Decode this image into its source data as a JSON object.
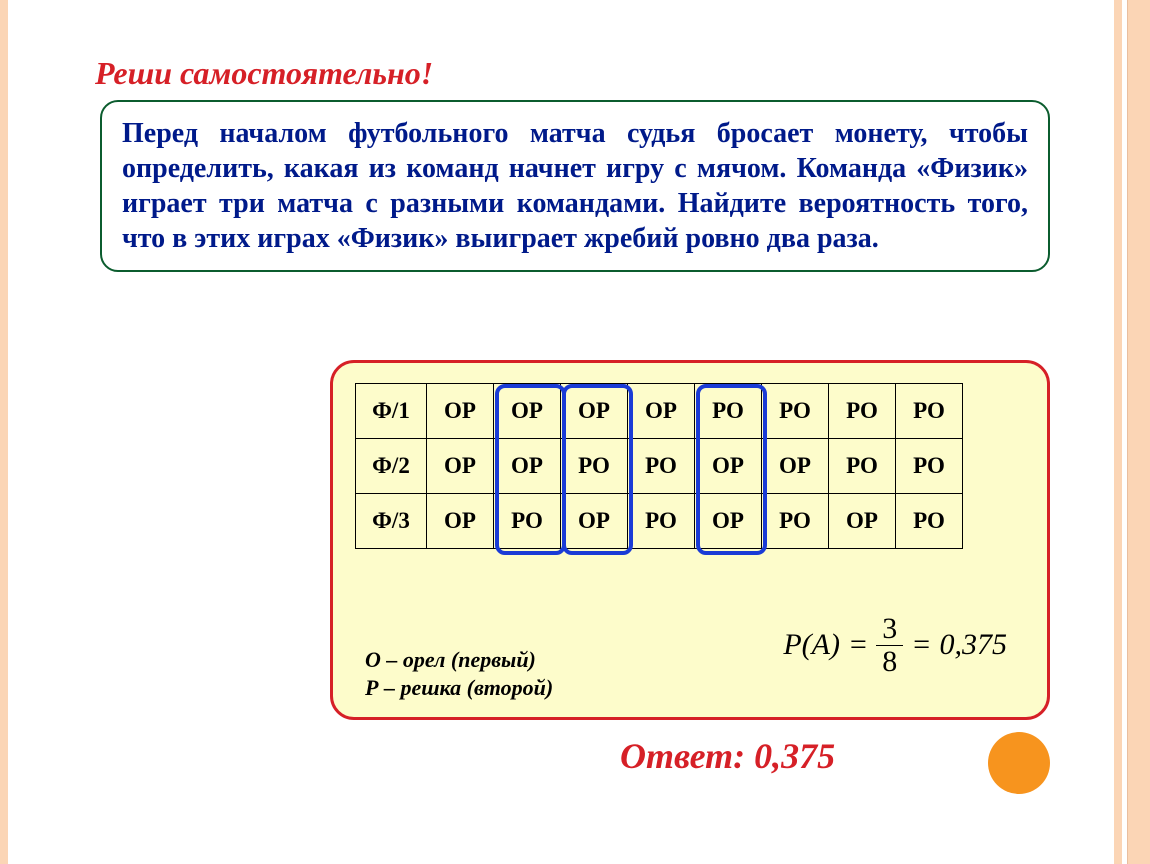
{
  "heading": "Реши самостоятельно!",
  "problem_text": "Перед началом футбольного матча судья бросает монету, чтобы определить, какая из команд начнет игру с мячом. Команда «Физик» играет три матча с разными командами. Найдите вероятность того, что в этих играх  «Физик» выиграет жребий ровно два раза.",
  "table": {
    "rows": [
      [
        "Ф/1",
        "ОР",
        "ОР",
        "ОР",
        "ОР",
        "РО",
        "РО",
        "РО",
        "РО"
      ],
      [
        "Ф/2",
        "ОР",
        "ОР",
        "РО",
        "РО",
        "ОР",
        "ОР",
        "РО",
        "РО"
      ],
      [
        "Ф/3",
        "ОР",
        "РО",
        "ОР",
        "РО",
        "ОР",
        "РО",
        "ОР",
        "РО"
      ]
    ],
    "highlighted_columns": [
      2,
      3,
      5
    ],
    "cell_font_size": 23,
    "border_color": "#000000",
    "highlight_border_color": "#1a3bd6",
    "highlight_border_width": 4,
    "highlight_border_radius": 10
  },
  "legend": {
    "line1": "О – орел (первый)",
    "line2": "Р – решка (второй)"
  },
  "formula": {
    "lhs": "P(A)",
    "numerator": "3",
    "denominator": "8",
    "decimal": "0,375"
  },
  "answer": "Ответ: 0,375",
  "colors": {
    "heading": "#d62027",
    "problem_text": "#001a8a",
    "problem_border": "#0b5c2e",
    "solution_bg": "#fdfccb",
    "solution_border": "#d62027",
    "answer": "#d62027",
    "side_strip": "#fbd5b5",
    "accent_dot": "#f7941e"
  },
  "fontsizes": {
    "heading": 32,
    "problem": 28,
    "answer": 36,
    "legend": 22,
    "formula": 30
  }
}
